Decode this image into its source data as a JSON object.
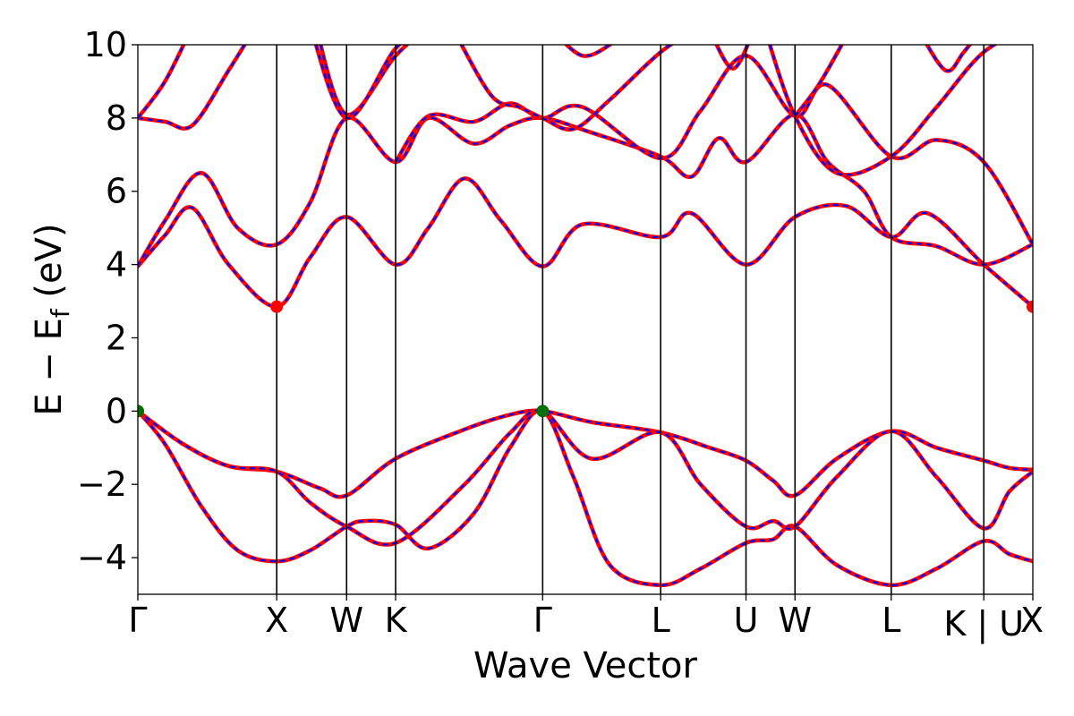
{
  "chart_data": {
    "type": "line",
    "title": "",
    "xlabel": "Wave Vector",
    "ylabel_parts": {
      "main": "E − E",
      "sub": "f",
      "unit": " (eV)"
    },
    "ylim": [
      -5,
      10
    ],
    "yticks": [
      -4,
      -2,
      0,
      2,
      4,
      6,
      8,
      10
    ],
    "ytick_labels": [
      "−4",
      "−2",
      "0",
      "2",
      "4",
      "6",
      "8",
      "10"
    ],
    "grid": false,
    "legend": "none",
    "kpath_unit_range": [
      0,
      4.93
    ],
    "kpoints": [
      {
        "label": "Γ",
        "k": 0.0
      },
      {
        "label": "X",
        "k": 0.765
      },
      {
        "label": "W",
        "k": 1.15
      },
      {
        "label": "K",
        "k": 1.42
      },
      {
        "label": "Γ",
        "k": 2.23
      },
      {
        "label": "L",
        "k": 2.88
      },
      {
        "label": "U",
        "k": 3.35
      },
      {
        "label": "W",
        "k": 3.62
      },
      {
        "label": "L",
        "k": 4.15
      },
      {
        "label": "K | U",
        "k": 4.66
      },
      {
        "label": "X",
        "k": 4.93
      }
    ],
    "vertical_lines_at": [
      0.765,
      1.15,
      1.42,
      2.23,
      2.88,
      3.35,
      3.62,
      4.15,
      4.66
    ],
    "colors": {
      "bands": "#ff0000",
      "bands_overlay": "#0000ff",
      "vbm": "#007000",
      "cbm": "#ff0000"
    },
    "series": [
      {
        "values": [
          [
            0,
            0
          ],
          [
            0.15,
            -0.9
          ],
          [
            0.35,
            -2.6
          ],
          [
            0.55,
            -3.8
          ],
          [
            0.765,
            -4.1
          ],
          [
            0.95,
            -3.8
          ],
          [
            1.15,
            -3.15
          ],
          [
            1.25,
            -3.0
          ],
          [
            1.42,
            -3.1
          ],
          [
            1.6,
            -3.75
          ],
          [
            1.85,
            -2.8
          ],
          [
            2.05,
            -1.0
          ],
          [
            2.23,
            0
          ],
          [
            2.4,
            -1.8
          ],
          [
            2.6,
            -4.2
          ],
          [
            2.88,
            -4.75
          ],
          [
            3.1,
            -4.3
          ],
          [
            3.35,
            -3.6
          ],
          [
            3.5,
            -3.5
          ],
          [
            3.62,
            -3.15
          ],
          [
            3.85,
            -4.2
          ],
          [
            4.15,
            -4.75
          ],
          [
            4.4,
            -4.3
          ],
          [
            4.66,
            -3.55
          ],
          [
            4.8,
            -3.9
          ],
          [
            4.93,
            -4.1
          ]
        ]
      },
      {
        "values": [
          [
            0,
            0
          ],
          [
            0.25,
            -0.9
          ],
          [
            0.5,
            -1.5
          ],
          [
            0.765,
            -1.65
          ],
          [
            1.0,
            -2.1
          ],
          [
            1.15,
            -2.3
          ],
          [
            1.42,
            -1.3
          ],
          [
            1.8,
            -0.5
          ],
          [
            2.05,
            -0.1
          ],
          [
            2.23,
            0
          ],
          [
            2.5,
            -0.3
          ],
          [
            2.88,
            -0.58
          ],
          [
            3.15,
            -1.0
          ],
          [
            3.35,
            -1.35
          ],
          [
            3.5,
            -1.9
          ],
          [
            3.62,
            -2.3
          ],
          [
            3.85,
            -1.3
          ],
          [
            4.15,
            -0.55
          ],
          [
            4.4,
            -1.0
          ],
          [
            4.66,
            -1.35
          ],
          [
            4.8,
            -1.55
          ],
          [
            4.93,
            -1.6
          ]
        ]
      },
      {
        "values": [
          [
            0,
            0
          ],
          [
            0.25,
            -0.9
          ],
          [
            0.5,
            -1.5
          ],
          [
            0.765,
            -1.65
          ],
          [
            0.95,
            -2.5
          ],
          [
            1.15,
            -3.15
          ],
          [
            1.42,
            -3.6
          ],
          [
            1.8,
            -2.0
          ],
          [
            2.05,
            -0.6
          ],
          [
            2.23,
            0
          ],
          [
            2.5,
            -1.3
          ],
          [
            2.88,
            -0.58
          ],
          [
            3.1,
            -2.0
          ],
          [
            3.35,
            -3.15
          ],
          [
            3.5,
            -3.0
          ],
          [
            3.62,
            -3.15
          ],
          [
            3.85,
            -1.8
          ],
          [
            4.15,
            -0.55
          ],
          [
            4.4,
            -1.8
          ],
          [
            4.66,
            -3.2
          ],
          [
            4.8,
            -2.2
          ],
          [
            4.93,
            -1.65
          ]
        ]
      },
      {
        "values": [
          [
            0,
            3.95
          ],
          [
            0.15,
            4.8
          ],
          [
            0.3,
            5.55
          ],
          [
            0.5,
            4.0
          ],
          [
            0.765,
            2.85
          ],
          [
            0.95,
            4.2
          ],
          [
            1.15,
            5.3
          ],
          [
            1.42,
            4.0
          ],
          [
            1.6,
            5.0
          ],
          [
            1.8,
            6.35
          ],
          [
            2.0,
            5.2
          ],
          [
            2.23,
            3.95
          ],
          [
            2.45,
            5.1
          ],
          [
            2.88,
            4.75
          ],
          [
            3.05,
            5.4
          ],
          [
            3.35,
            4.0
          ],
          [
            3.62,
            5.3
          ],
          [
            3.9,
            5.6
          ],
          [
            4.15,
            4.75
          ],
          [
            4.35,
            5.4
          ],
          [
            4.66,
            4.0
          ],
          [
            4.93,
            2.85
          ]
        ]
      },
      {
        "values": [
          [
            0,
            3.95
          ],
          [
            0.15,
            5.2
          ],
          [
            0.35,
            6.5
          ],
          [
            0.55,
            5.0
          ],
          [
            0.765,
            4.55
          ],
          [
            0.95,
            5.7
          ],
          [
            1.15,
            8.0
          ],
          [
            1.42,
            6.8
          ],
          [
            1.6,
            8.0
          ],
          [
            1.85,
            7.3
          ],
          [
            2.05,
            7.8
          ],
          [
            2.23,
            8.0
          ],
          [
            2.5,
            7.6
          ],
          [
            2.88,
            6.95
          ],
          [
            3.05,
            6.4
          ],
          [
            3.2,
            7.45
          ],
          [
            3.35,
            6.8
          ],
          [
            3.62,
            8.1
          ],
          [
            3.8,
            6.8
          ],
          [
            4.0,
            6.0
          ],
          [
            4.15,
            4.75
          ],
          [
            4.4,
            4.5
          ],
          [
            4.66,
            4.0
          ],
          [
            4.93,
            4.55
          ]
        ]
      },
      {
        "values": [
          [
            0,
            8.0
          ],
          [
            0.15,
            7.9
          ],
          [
            0.3,
            7.8
          ],
          [
            0.5,
            9.3
          ],
          [
            0.65,
            10.5
          ]
        ]
      },
      {
        "values": [
          [
            0,
            8.0
          ],
          [
            0.15,
            9.0
          ],
          [
            0.3,
            10.5
          ]
        ]
      },
      {
        "values": [
          [
            0.98,
            10.5
          ],
          [
            1.15,
            8.1
          ],
          [
            1.42,
            9.7
          ],
          [
            1.6,
            10.5
          ]
        ]
      },
      {
        "values": [
          [
            0.95,
            10.5
          ],
          [
            1.15,
            8.0
          ],
          [
            1.42,
            9.9
          ],
          [
            1.6,
            10.5
          ]
        ]
      },
      {
        "values": [
          [
            1.42,
            6.8
          ],
          [
            1.6,
            8.05
          ],
          [
            1.85,
            7.9
          ],
          [
            2.05,
            8.4
          ],
          [
            2.23,
            8.0
          ],
          [
            2.45,
            8.3
          ],
          [
            2.88,
            6.9
          ],
          [
            3.1,
            8.2
          ],
          [
            3.35,
            9.7
          ],
          [
            3.62,
            8.05
          ],
          [
            3.8,
            8.9
          ],
          [
            4.15,
            6.95
          ],
          [
            4.4,
            7.4
          ],
          [
            4.66,
            6.8
          ],
          [
            4.93,
            4.55
          ]
        ]
      },
      {
        "values": [
          [
            1.75,
            10.3
          ],
          [
            1.95,
            8.6
          ],
          [
            2.1,
            8.3
          ],
          [
            2.23,
            8.0
          ],
          [
            2.4,
            7.7
          ],
          [
            2.6,
            8.5
          ],
          [
            2.88,
            9.8
          ],
          [
            3.1,
            10.5
          ]
        ]
      },
      {
        "values": [
          [
            2.3,
            10.3
          ],
          [
            2.45,
            9.7
          ],
          [
            2.6,
            10.0
          ],
          [
            2.7,
            10.5
          ]
        ]
      },
      {
        "values": [
          [
            3.15,
            10.4
          ],
          [
            3.28,
            9.35
          ],
          [
            3.4,
            10.5
          ]
        ]
      },
      {
        "values": [
          [
            3.45,
            10.5
          ],
          [
            3.62,
            8.05
          ],
          [
            3.85,
            6.5
          ],
          [
            4.15,
            6.95
          ],
          [
            4.4,
            8.3
          ],
          [
            4.66,
            9.8
          ],
          [
            4.93,
            10.5
          ]
        ]
      },
      {
        "values": [
          [
            4.3,
            10.4
          ],
          [
            4.45,
            9.3
          ],
          [
            4.55,
            9.8
          ],
          [
            4.66,
            10.5
          ]
        ]
      },
      {
        "values": [
          [
            3.9,
            10.2
          ],
          [
            3.75,
            8.9
          ],
          [
            3.62,
            8.05
          ]
        ]
      }
    ],
    "markers": [
      {
        "k": 0.0,
        "e": 0.0,
        "kind": "vbm"
      },
      {
        "k": 2.23,
        "e": 0.0,
        "kind": "vbm"
      },
      {
        "k": 0.765,
        "e": 2.85,
        "kind": "cbm"
      },
      {
        "k": 4.93,
        "e": 2.85,
        "kind": "cbm"
      }
    ]
  }
}
